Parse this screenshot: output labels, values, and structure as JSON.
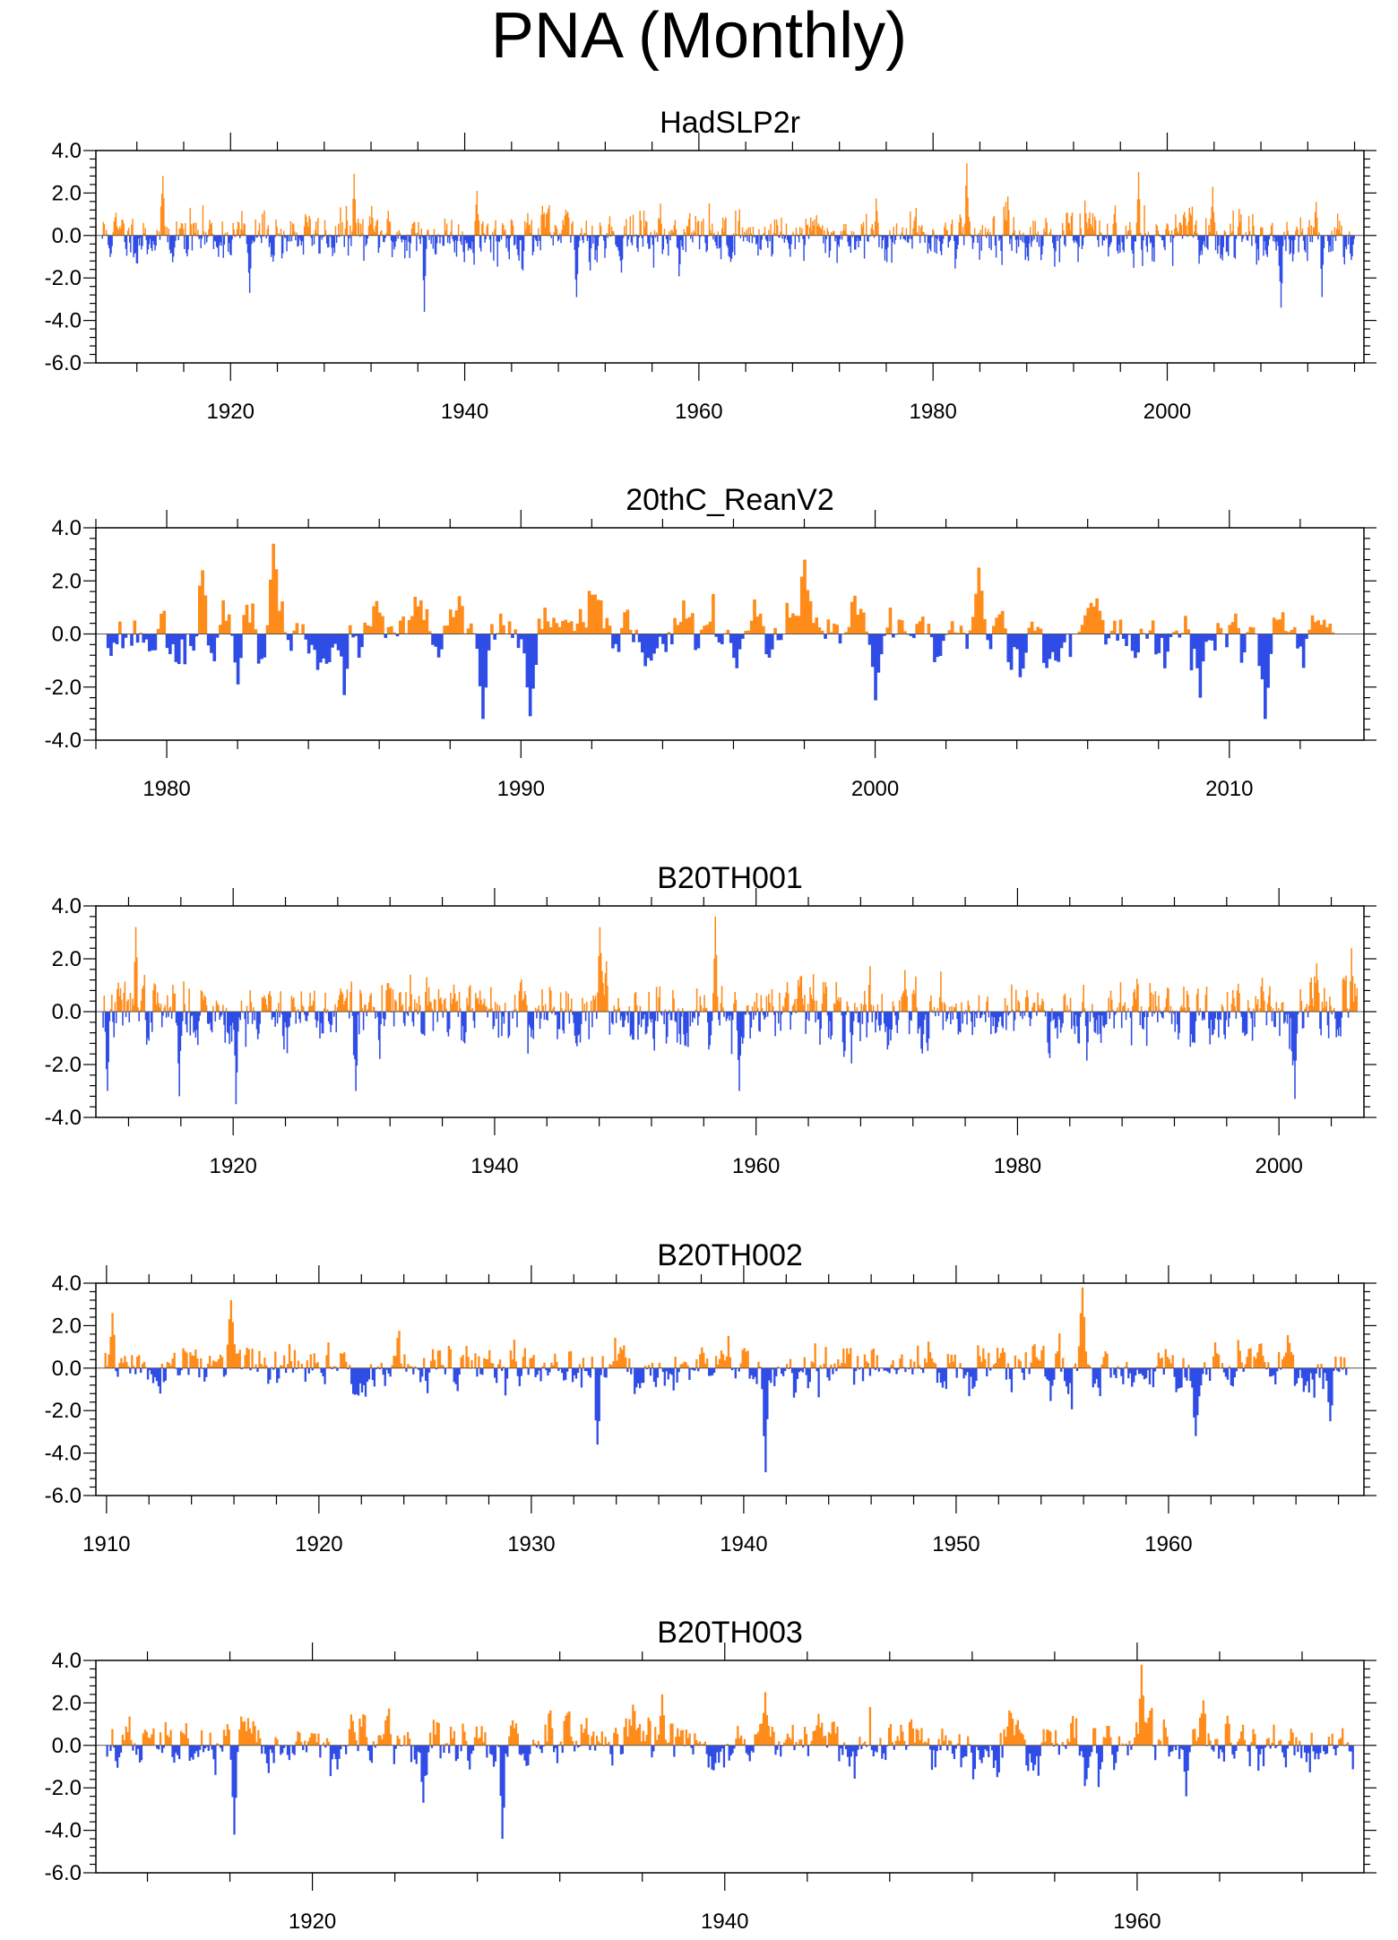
{
  "title": "PNA (Monthly)",
  "colors": {
    "positive": "#ff8c1a",
    "negative": "#2f4de6",
    "axis": "#000000"
  },
  "chart_data": [
    {
      "type": "bar",
      "title": "HadSLP2r",
      "x_range": [
        1908.5,
        2016.8
      ],
      "ylim": [
        -6,
        4
      ],
      "y_ticks": [
        4,
        2,
        0,
        -2,
        -4,
        -6
      ],
      "y_tick_labels": [
        "4.0",
        "2.0",
        "0.0",
        "-2.0",
        "-4.0",
        "-6.0"
      ],
      "x_ticks": [
        1920,
        1940,
        1960,
        1980,
        2000
      ],
      "x_tick_labels": [
        "1920",
        "1940",
        "1960",
        "1980",
        "2000"
      ],
      "series_start": 1909.0,
      "series_end": 2016.0,
      "seed": 11,
      "ar_coef": 0.45,
      "highlights": [
        {
          "x": 1914.2,
          "y": 2.8
        },
        {
          "x": 1921.6,
          "y": -2.7
        },
        {
          "x": 1930.5,
          "y": 2.9
        },
        {
          "x": 1936.5,
          "y": -3.6
        },
        {
          "x": 1941.0,
          "y": 2.1
        },
        {
          "x": 1949.5,
          "y": -2.9
        },
        {
          "x": 1982.8,
          "y": 3.4
        },
        {
          "x": 1997.5,
          "y": 3.0
        },
        {
          "x": 2009.7,
          "y": -3.4
        },
        {
          "x": 2013.2,
          "y": -2.9
        }
      ]
    },
    {
      "type": "bar",
      "title": "20thC_ReanV2",
      "x_range": [
        1978.0,
        2013.8
      ],
      "ylim": [
        -4,
        4
      ],
      "y_ticks": [
        4,
        2,
        0,
        -2,
        -4
      ],
      "y_tick_labels": [
        "4.0",
        "2.0",
        "0.0",
        "-2.0",
        "-4.0"
      ],
      "x_ticks": [
        1980,
        1990,
        2000,
        2010
      ],
      "x_tick_labels": [
        "1980",
        "1990",
        "2000",
        "2010"
      ],
      "series_start": 1978.3,
      "series_end": 2013.0,
      "seed": 23,
      "ar_coef": 0.6,
      "highlights": [
        {
          "x": 1981.0,
          "y": 2.4
        },
        {
          "x": 1982.0,
          "y": -1.9
        },
        {
          "x": 1983.0,
          "y": 3.4
        },
        {
          "x": 1985.0,
          "y": -2.3
        },
        {
          "x": 1988.9,
          "y": -3.2
        },
        {
          "x": 1990.2,
          "y": -3.1
        },
        {
          "x": 1998.0,
          "y": 2.8
        },
        {
          "x": 2000.0,
          "y": -2.5
        },
        {
          "x": 2002.9,
          "y": 2.5
        },
        {
          "x": 2009.1,
          "y": -2.4
        },
        {
          "x": 2011.0,
          "y": -3.2
        }
      ]
    },
    {
      "type": "bar",
      "title": "B20TH001",
      "x_range": [
        1909.5,
        2006.5
      ],
      "ylim": [
        -4,
        4
      ],
      "y_ticks": [
        4,
        2,
        0,
        -2,
        -4
      ],
      "y_tick_labels": [
        "4.0",
        "2.0",
        "0.0",
        "-2.0",
        "-4.0"
      ],
      "x_ticks": [
        1920,
        1940,
        1960,
        1980,
        2000
      ],
      "x_tick_labels": [
        "1920",
        "1940",
        "1960",
        "1980",
        "2000"
      ],
      "series_start": 1910.0,
      "series_end": 2006.0,
      "seed": 37,
      "ar_coef": 0.45,
      "highlights": [
        {
          "x": 1910.3,
          "y": -3.0
        },
        {
          "x": 1912.5,
          "y": 3.2
        },
        {
          "x": 1915.8,
          "y": -3.2
        },
        {
          "x": 1920.2,
          "y": -3.5
        },
        {
          "x": 1929.3,
          "y": -3.0
        },
        {
          "x": 1948.0,
          "y": 3.2
        },
        {
          "x": 1956.8,
          "y": 3.6
        },
        {
          "x": 1958.7,
          "y": -3.0
        },
        {
          "x": 2001.2,
          "y": -3.3
        },
        {
          "x": 2005.5,
          "y": 2.4
        }
      ]
    },
    {
      "type": "bar",
      "title": "B20TH002",
      "x_range": [
        1909.5,
        1969.2
      ],
      "ylim": [
        -6,
        4
      ],
      "y_ticks": [
        4,
        2,
        0,
        -2,
        -4,
        -6
      ],
      "y_tick_labels": [
        "4.0",
        "2.0",
        "0.0",
        "-2.0",
        "-4.0",
        "-6.0"
      ],
      "x_ticks": [
        1910,
        1920,
        1930,
        1940,
        1950,
        1960
      ],
      "x_tick_labels": [
        "1910",
        "1920",
        "1930",
        "1940",
        "1950",
        "1960"
      ],
      "series_start": 1909.9,
      "series_end": 1968.5,
      "seed": 51,
      "ar_coef": 0.5,
      "highlights": [
        {
          "x": 1910.2,
          "y": 2.6
        },
        {
          "x": 1915.8,
          "y": 3.2
        },
        {
          "x": 1933.1,
          "y": -3.6
        },
        {
          "x": 1941.0,
          "y": -4.9
        },
        {
          "x": 1955.9,
          "y": 3.8
        },
        {
          "x": 1961.2,
          "y": -3.2
        },
        {
          "x": 1967.6,
          "y": -2.5
        }
      ]
    },
    {
      "type": "bar",
      "title": "B20TH003",
      "x_range": [
        1909.5,
        1971.0
      ],
      "ylim": [
        -6,
        4
      ],
      "y_ticks": [
        4,
        2,
        0,
        -2,
        -4,
        -6
      ],
      "y_tick_labels": [
        "4.0",
        "2.0",
        "0.0",
        "-2.0",
        "-4.0",
        "-6.0"
      ],
      "x_ticks": [
        1920,
        1940,
        1960
      ],
      "x_tick_labels": [
        "1920",
        "1940",
        "1960"
      ],
      "series_start": 1910.0,
      "series_end": 1970.5,
      "seed": 67,
      "ar_coef": 0.5,
      "highlights": [
        {
          "x": 1916.2,
          "y": -4.2
        },
        {
          "x": 1925.3,
          "y": -2.7
        },
        {
          "x": 1929.2,
          "y": -4.4
        },
        {
          "x": 1936.9,
          "y": 2.4
        },
        {
          "x": 1941.9,
          "y": 2.5
        },
        {
          "x": 1960.2,
          "y": 3.8
        },
        {
          "x": 1962.3,
          "y": -2.4
        }
      ]
    }
  ]
}
